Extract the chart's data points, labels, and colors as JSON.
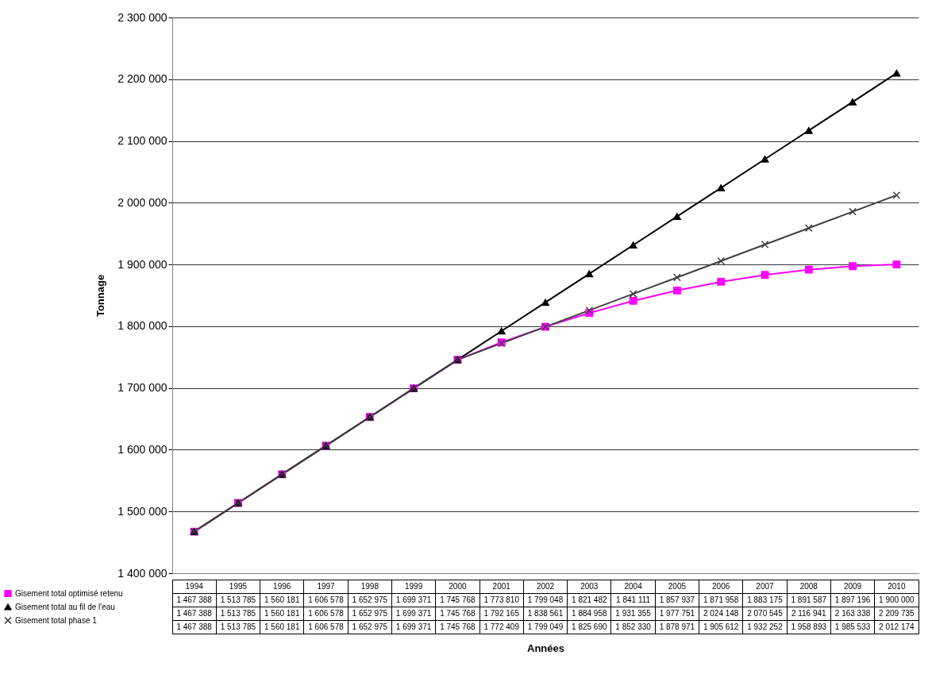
{
  "chart_data": {
    "type": "line",
    "xlabel": "Années",
    "ylabel": "Tonnage",
    "categories": [
      "1994",
      "1995",
      "1996",
      "1997",
      "1998",
      "1999",
      "2000",
      "2001",
      "2002",
      "2003",
      "2004",
      "2005",
      "2006",
      "2007",
      "2008",
      "2009",
      "2010"
    ],
    "ylim": [
      1400000,
      2300000
    ],
    "yticks": [
      {
        "value": 1400000,
        "label": "1 400 000"
      },
      {
        "value": 1500000,
        "label": "1 500 000"
      },
      {
        "value": 1600000,
        "label": "1 600 000"
      },
      {
        "value": 1700000,
        "label": "1 700 000"
      },
      {
        "value": 1800000,
        "label": "1 800 000"
      },
      {
        "value": 1900000,
        "label": "1 900 000"
      },
      {
        "value": 2000000,
        "label": "2 000 000"
      },
      {
        "value": 2100000,
        "label": "2 100 000"
      },
      {
        "value": 2200000,
        "label": "2 200 000"
      },
      {
        "value": 2300000,
        "label": "2 300 000"
      }
    ],
    "grid": "y",
    "legend": "bottom left",
    "series": [
      {
        "name": "Gisement total optimisé retenu",
        "color": "#ff00ff",
        "marker": "square",
        "values": [
          1467388,
          1513785,
          1560181,
          1606578,
          1652975,
          1699371,
          1745768,
          1773810,
          1799048,
          1821482,
          1841111,
          1857937,
          1871958,
          1883175,
          1891587,
          1897196,
          1900000
        ],
        "value_labels": [
          "1 467 388",
          "1 513 785",
          "1 560 181",
          "1 606 578",
          "1 652 975",
          "1 699 371",
          "1 745 768",
          "1 773 810",
          "1 799 048",
          "1 821 482",
          "1 841 111",
          "1 857 937",
          "1 871 958",
          "1 883 175",
          "1 891 587",
          "1 897 196",
          "1 900 000"
        ]
      },
      {
        "name": "Gisement total au fil de l'eau",
        "color": "#000000",
        "marker": "triangle",
        "values": [
          1467388,
          1513785,
          1560181,
          1606578,
          1652975,
          1699371,
          1745768,
          1792165,
          1838561,
          1884958,
          1931355,
          1977751,
          2024148,
          2070545,
          2116941,
          2163338,
          2209735
        ],
        "value_labels": [
          "1 467 388",
          "1 513 785",
          "1 560 181",
          "1 606 578",
          "1 652 975",
          "1 699 371",
          "1 745 768",
          "1 792 165",
          "1 838 561",
          "1 884 958",
          "1 931 355",
          "1 977 751",
          "2 024 148",
          "2 070 545",
          "2 116 941",
          "2 163 338",
          "2 209 735"
        ]
      },
      {
        "name": "Gisement total phase 1",
        "color": "#404040",
        "marker": "cross",
        "values": [
          1467388,
          1513785,
          1560181,
          1606578,
          1652975,
          1699371,
          1745768,
          1772409,
          1799049,
          1825690,
          1852330,
          1878971,
          1905612,
          1932252,
          1958893,
          1985533,
          2012174
        ],
        "value_labels": [
          "1 467 388",
          "1 513 785",
          "1 560 181",
          "1 606 578",
          "1 652 975",
          "1 699 371",
          "1 745 768",
          "1 772 409",
          "1 799 049",
          "1 825 690",
          "1 852 330",
          "1 878 971",
          "1 905 612",
          "1 932 252",
          "1 958 893",
          "1 985 533",
          "2 012 174"
        ]
      }
    ]
  }
}
